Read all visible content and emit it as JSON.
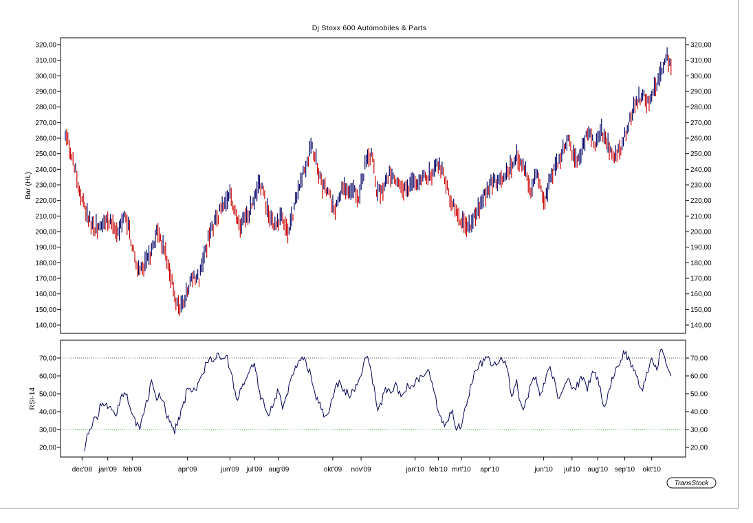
{
  "colors": {
    "up": "#000066",
    "down": "#cc0000",
    "rsi_line": "#000055",
    "ref_70": "#555555",
    "ref_30": "#33aa33"
  },
  "chart_data": [
    {
      "type": "ohlc-bar",
      "title": "Dj Stoxx 600 Automobiles & Parts",
      "ylabel": "Bar (HL)",
      "ylim": [
        138,
        322
      ],
      "yticks": [
        "320,00",
        "310,00",
        "300,00",
        "290,00",
        "280,00",
        "270,00",
        "260,00",
        "250,00",
        "240,00",
        "230,00",
        "220,00",
        "210,00",
        "200,00",
        "190,00",
        "180,00",
        "170,00",
        "160,00",
        "150,00",
        "140,00"
      ],
      "anchors": [
        [
          0,
          262
        ],
        [
          4,
          250
        ],
        [
          8,
          232
        ],
        [
          14,
          210
        ],
        [
          18,
          202
        ],
        [
          24,
          205
        ],
        [
          30,
          207
        ],
        [
          34,
          199
        ],
        [
          38,
          213
        ],
        [
          43,
          192
        ],
        [
          47,
          174
        ],
        [
          51,
          178
        ],
        [
          55,
          186
        ],
        [
          59,
          200
        ],
        [
          63,
          190
        ],
        [
          67,
          176
        ],
        [
          70,
          160
        ],
        [
          73,
          149
        ],
        [
          76,
          154
        ],
        [
          79,
          164
        ],
        [
          82,
          170
        ],
        [
          86,
          170
        ],
        [
          89,
          182
        ],
        [
          92,
          196
        ],
        [
          95,
          203
        ],
        [
          99,
          212
        ],
        [
          103,
          221
        ],
        [
          106,
          223
        ],
        [
          109,
          211
        ],
        [
          112,
          204
        ],
        [
          115,
          209
        ],
        [
          118,
          212
        ],
        [
          121,
          220
        ],
        [
          124,
          231
        ],
        [
          127,
          226
        ],
        [
          130,
          212
        ],
        [
          133,
          206
        ],
        [
          136,
          204
        ],
        [
          139,
          212
        ],
        [
          142,
          200
        ],
        [
          145,
          205
        ],
        [
          148,
          222
        ],
        [
          151,
          232
        ],
        [
          155,
          244
        ],
        [
          158,
          254
        ],
        [
          161,
          247
        ],
        [
          164,
          232
        ],
        [
          167,
          227
        ],
        [
          170,
          222
        ],
        [
          173,
          212
        ],
        [
          176,
          224
        ],
        [
          179,
          230
        ],
        [
          182,
          227
        ],
        [
          185,
          227
        ],
        [
          188,
          222
        ],
        [
          191,
          234
        ],
        [
          194,
          250
        ],
        [
          197,
          248
        ],
        [
          200,
          226
        ],
        [
          203,
          226
        ],
        [
          206,
          232
        ],
        [
          209,
          238
        ],
        [
          212,
          231
        ],
        [
          215,
          230
        ],
        [
          218,
          226
        ],
        [
          221,
          228
        ],
        [
          224,
          233
        ],
        [
          227,
          233
        ],
        [
          230,
          235
        ],
        [
          233,
          236
        ],
        [
          236,
          238
        ],
        [
          239,
          243
        ],
        [
          242,
          240
        ],
        [
          245,
          228
        ],
        [
          248,
          218
        ],
        [
          251,
          214
        ],
        [
          254,
          206
        ],
        [
          257,
          206
        ],
        [
          260,
          203
        ],
        [
          263,
          210
        ],
        [
          266,
          216
        ],
        [
          269,
          222
        ],
        [
          272,
          230
        ],
        [
          275,
          232
        ],
        [
          278,
          234
        ],
        [
          281,
          236
        ],
        [
          284,
          238
        ],
        [
          287,
          243
        ],
        [
          290,
          248
        ],
        [
          293,
          243
        ],
        [
          296,
          238
        ],
        [
          299,
          226
        ],
        [
          302,
          238
        ],
        [
          305,
          230
        ],
        [
          308,
          220
        ],
        [
          311,
          232
        ],
        [
          314,
          240
        ],
        [
          317,
          244
        ],
        [
          320,
          254
        ],
        [
          323,
          258
        ],
        [
          326,
          248
        ],
        [
          329,
          244
        ],
        [
          332,
          252
        ],
        [
          335,
          262
        ],
        [
          338,
          260
        ],
        [
          341,
          256
        ],
        [
          344,
          266
        ],
        [
          347,
          260
        ],
        [
          350,
          252
        ],
        [
          353,
          248
        ],
        [
          356,
          252
        ],
        [
          359,
          260
        ],
        [
          362,
          270
        ],
        [
          365,
          280
        ],
        [
          368,
          285
        ],
        [
          371,
          288
        ],
        [
          374,
          283
        ],
        [
          377,
          290
        ],
        [
          380,
          296
        ],
        [
          383,
          302
        ],
        [
          386,
          314
        ],
        [
          389,
          305
        ]
      ],
      "last_index": 389,
      "seed": 20101029
    },
    {
      "type": "line",
      "ylabel": "RSI-14",
      "ylim": [
        14,
        77
      ],
      "yticks": [
        "70,00",
        "60,00",
        "50,00",
        "40,00",
        "30,00",
        "20,00"
      ],
      "reference_lines": [
        70,
        30
      ],
      "start_index": 12,
      "anchors": [
        [
          12,
          18
        ],
        [
          14,
          28
        ],
        [
          16,
          32
        ],
        [
          20,
          36
        ],
        [
          22,
          42
        ],
        [
          26,
          44
        ],
        [
          30,
          40
        ],
        [
          32,
          36
        ],
        [
          35,
          47
        ],
        [
          38,
          52
        ],
        [
          41,
          45
        ],
        [
          44,
          37
        ],
        [
          47,
          30
        ],
        [
          50,
          38
        ],
        [
          53,
          47
        ],
        [
          55,
          58
        ],
        [
          58,
          48
        ],
        [
          61,
          50
        ],
        [
          64,
          42
        ],
        [
          67,
          33
        ],
        [
          70,
          29
        ],
        [
          73,
          36
        ],
        [
          76,
          44
        ],
        [
          78,
          52
        ],
        [
          82,
          52
        ],
        [
          86,
          55
        ],
        [
          89,
          63
        ],
        [
          92,
          70
        ],
        [
          95,
          67
        ],
        [
          98,
          71
        ],
        [
          101,
          68
        ],
        [
          104,
          70
        ],
        [
          107,
          60
        ],
        [
          110,
          47
        ],
        [
          113,
          52
        ],
        [
          116,
          58
        ],
        [
          119,
          64
        ],
        [
          122,
          65
        ],
        [
          125,
          50
        ],
        [
          128,
          45
        ],
        [
          131,
          38
        ],
        [
          134,
          47
        ],
        [
          137,
          52
        ],
        [
          140,
          42
        ],
        [
          143,
          52
        ],
        [
          146,
          62
        ],
        [
          149,
          67
        ],
        [
          152,
          70
        ],
        [
          155,
          67
        ],
        [
          158,
          60
        ],
        [
          161,
          48
        ],
        [
          164,
          43
        ],
        [
          167,
          36
        ],
        [
          170,
          42
        ],
        [
          173,
          52
        ],
        [
          176,
          56
        ],
        [
          179,
          52
        ],
        [
          182,
          50
        ],
        [
          185,
          50
        ],
        [
          188,
          58
        ],
        [
          191,
          65
        ],
        [
          194,
          70
        ],
        [
          197,
          60
        ],
        [
          200,
          42
        ],
        [
          203,
          46
        ],
        [
          206,
          52
        ],
        [
          209,
          50
        ],
        [
          212,
          56
        ],
        [
          215,
          50
        ],
        [
          218,
          53
        ],
        [
          221,
          55
        ],
        [
          224,
          56
        ],
        [
          227,
          58
        ],
        [
          230,
          60
        ],
        [
          233,
          64
        ],
        [
          236,
          57
        ],
        [
          239,
          42
        ],
        [
          242,
          35
        ],
        [
          245,
          32
        ],
        [
          248,
          42
        ],
        [
          251,
          32
        ],
        [
          254,
          31
        ],
        [
          257,
          42
        ],
        [
          260,
          52
        ],
        [
          263,
          62
        ],
        [
          266,
          67
        ],
        [
          269,
          68
        ],
        [
          272,
          70
        ],
        [
          275,
          65
        ],
        [
          278,
          68
        ],
        [
          281,
          70
        ],
        [
          284,
          62
        ],
        [
          287,
          48
        ],
        [
          290,
          56
        ],
        [
          293,
          42
        ],
        [
          296,
          45
        ],
        [
          299,
          55
        ],
        [
          302,
          58
        ],
        [
          305,
          50
        ],
        [
          308,
          57
        ],
        [
          311,
          65
        ],
        [
          314,
          58
        ],
        [
          317,
          46
        ],
        [
          320,
          52
        ],
        [
          323,
          60
        ],
        [
          326,
          52
        ],
        [
          329,
          55
        ],
        [
          332,
          60
        ],
        [
          335,
          52
        ],
        [
          338,
          62
        ],
        [
          341,
          60
        ],
        [
          344,
          50
        ],
        [
          347,
          42
        ],
        [
          350,
          55
        ],
        [
          353,
          62
        ],
        [
          356,
          68
        ],
        [
          359,
          74
        ],
        [
          362,
          68
        ],
        [
          365,
          65
        ],
        [
          368,
          58
        ],
        [
          371,
          52
        ],
        [
          374,
          62
        ],
        [
          377,
          70
        ],
        [
          380,
          65
        ],
        [
          383,
          75
        ],
        [
          386,
          65
        ],
        [
          389,
          62
        ]
      ],
      "seed": 7331
    }
  ],
  "x_axis": {
    "ticks": [
      {
        "i": 13,
        "label": "dec'08"
      },
      {
        "i": 33,
        "label": "jan'09"
      },
      {
        "i": 52,
        "label": "feb'09"
      },
      {
        "i": 95,
        "label": "apr'09"
      },
      {
        "i": 128,
        "label": "jun'09"
      },
      {
        "i": 147,
        "label": "jul'09"
      },
      {
        "i": 166,
        "label": "aug'09"
      },
      {
        "i": 208,
        "label": "okt'09"
      },
      {
        "i": 230,
        "label": "nov'09"
      },
      {
        "i": 272,
        "label": "jan'10"
      },
      {
        "i": 290,
        "label": "feb'10"
      },
      {
        "i": 308,
        "label": "mrt'10"
      },
      {
        "i": 330,
        "label": "apr'10"
      },
      {
        "i": 372,
        "label": "jun'10"
      },
      {
        "i": 394,
        "label": "jul'10"
      },
      {
        "i": 414,
        "label": "aug'10"
      },
      {
        "i": 435,
        "label": "sep'10"
      },
      {
        "i": 456,
        "label": "okt'10"
      }
    ]
  },
  "badge": "TransStock"
}
